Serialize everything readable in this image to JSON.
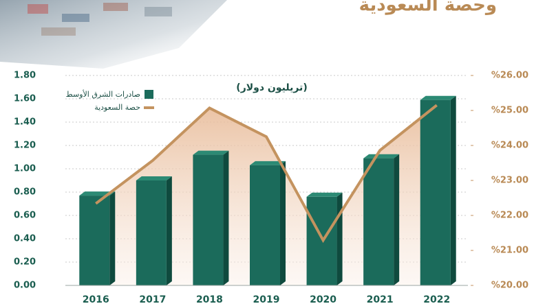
{
  "chart_data": {
    "type": "combo",
    "title": "وحصة السعودية",
    "unit_label": "(تريليون دولار)",
    "categories": [
      "2016",
      "2017",
      "2018",
      "2019",
      "2020",
      "2021",
      "2022"
    ],
    "series": [
      {
        "name": "صادرات الشرق الأوسط",
        "type": "bar",
        "color": "#1b6b5b",
        "values": [
          0.77,
          0.9,
          1.12,
          1.03,
          0.76,
          1.09,
          1.59
        ]
      },
      {
        "name": "حصة السعودية",
        "type": "line",
        "axis": "y2",
        "color": "#c4935f",
        "values": [
          22.34,
          23.57,
          25.07,
          24.25,
          21.29,
          23.86,
          25.15
        ]
      }
    ],
    "ylim": [
      0,
      1.8
    ],
    "yticks": [
      {
        "value": 0,
        "label": "0.00"
      },
      {
        "value": 0.2,
        "label": "0.20"
      },
      {
        "value": 0.4,
        "label": "0.40"
      },
      {
        "value": 0.6,
        "label": "0.60"
      },
      {
        "value": 0.8,
        "label": "0.80"
      },
      {
        "value": 1,
        "label": "1.00"
      },
      {
        "value": 1.2,
        "label": "1.20"
      },
      {
        "value": 1.4,
        "label": "1.40"
      },
      {
        "value": 1.6,
        "label": "1.60"
      },
      {
        "value": 1.8,
        "label": "1.80"
      }
    ],
    "y2lim": [
      20,
      26
    ],
    "y2ticks": [
      {
        "value": 20,
        "label": "%20.00"
      },
      {
        "value": 21,
        "label": "%21.00"
      },
      {
        "value": 22,
        "label": "%22.00"
      },
      {
        "value": 23,
        "label": "%23.00"
      },
      {
        "value": 24,
        "label": "%24.00"
      },
      {
        "value": 25,
        "label": "%25.00"
      },
      {
        "value": 26,
        "label": "%26.00"
      }
    ],
    "grid": true,
    "legend": "top-left"
  }
}
